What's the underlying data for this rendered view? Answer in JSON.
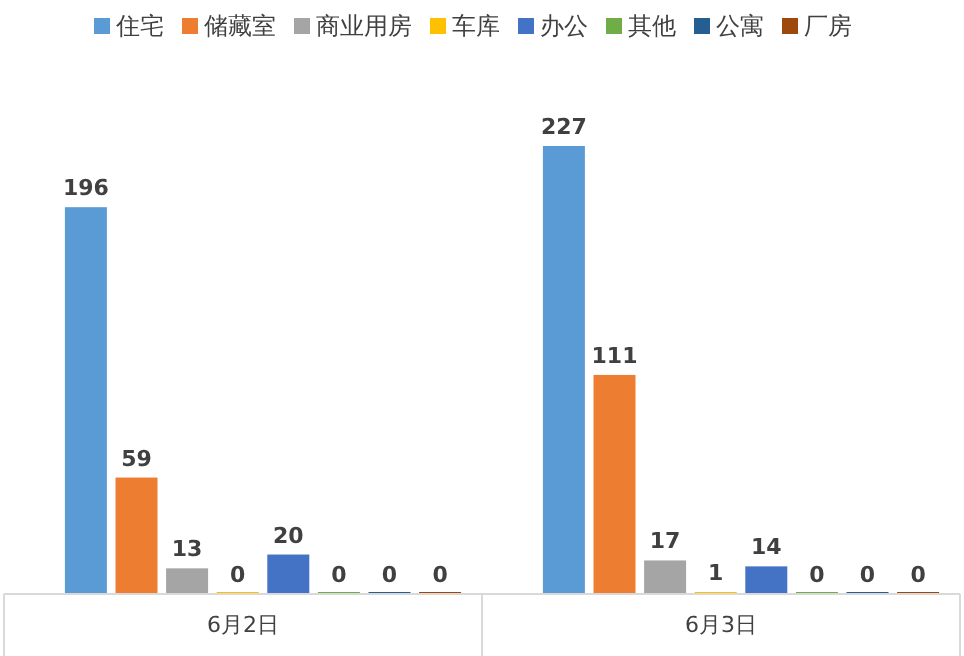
{
  "chart_data": {
    "type": "bar",
    "categories": [
      "6月2日",
      "6月3日"
    ],
    "data_labels": true,
    "legend": "top",
    "grid": false,
    "series": [
      {
        "name": "住宅",
        "color": "#5b9bd5",
        "values": [
          196,
          227
        ]
      },
      {
        "name": "储藏室",
        "color": "#ed7d31",
        "values": [
          59,
          111
        ]
      },
      {
        "name": "商业用房",
        "color": "#a5a5a5",
        "values": [
          13,
          17
        ]
      },
      {
        "name": "车库",
        "color": "#ffc000",
        "values": [
          0,
          1
        ]
      },
      {
        "name": "办公",
        "color": "#4472c4",
        "values": [
          20,
          14
        ]
      },
      {
        "name": "其他",
        "color": "#70ad47",
        "values": [
          0,
          0
        ]
      },
      {
        "name": "公寓",
        "color": "#255e91",
        "values": [
          0,
          0
        ]
      },
      {
        "name": "厂房",
        "color": "#9e480e",
        "values": [
          0,
          0
        ]
      }
    ]
  }
}
